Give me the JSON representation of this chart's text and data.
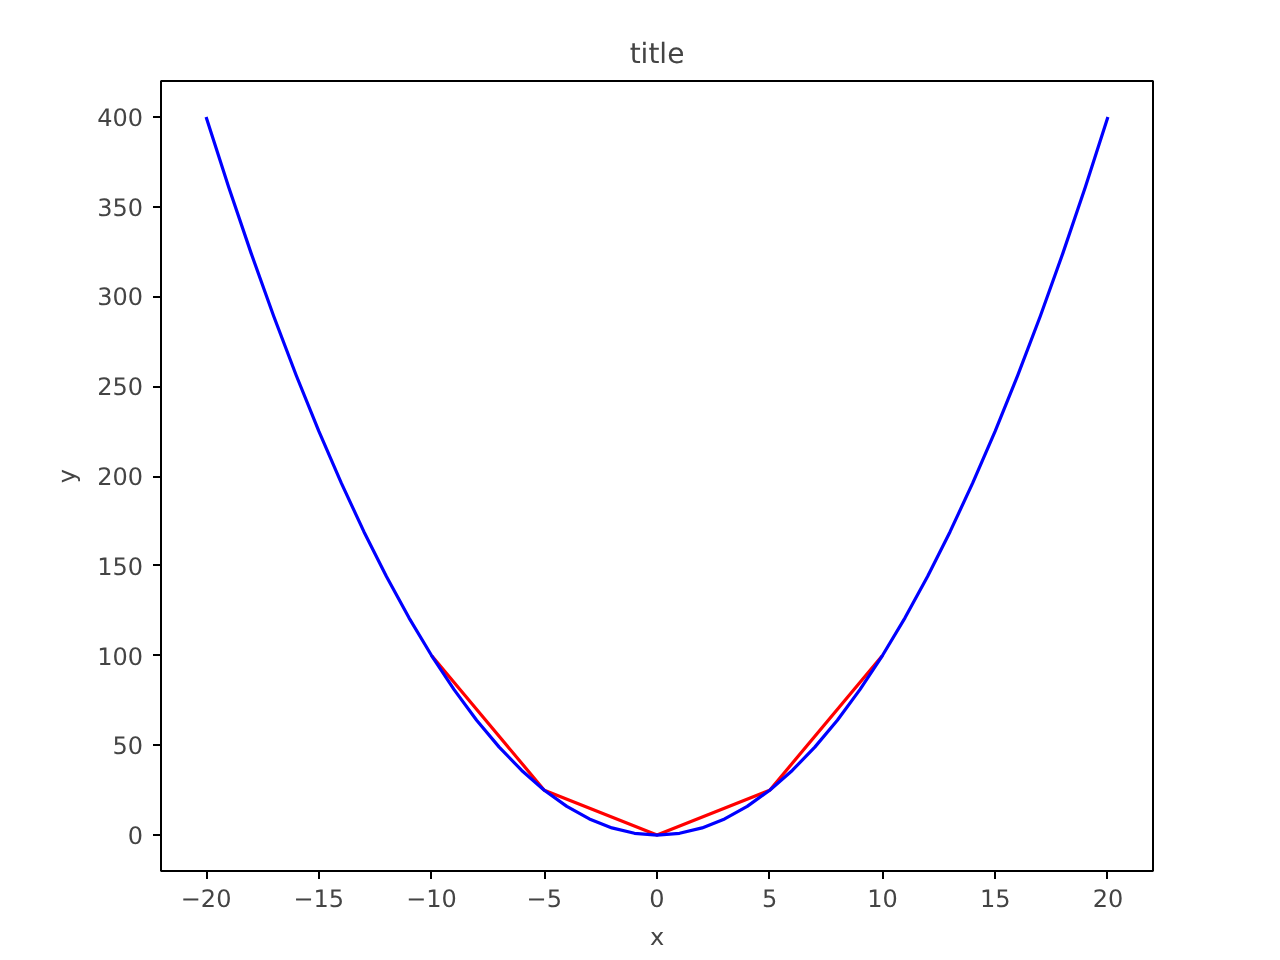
{
  "chart_data": {
    "type": "line",
    "title": "title",
    "xlabel": "x",
    "ylabel": "y",
    "series": [
      {
        "color": "#ff0000",
        "x": [
          -10,
          -5,
          0,
          5,
          10
        ],
        "values": [
          100,
          25,
          0,
          25,
          100
        ]
      },
      {
        "color": "#0000ff",
        "x": [
          -20,
          -19,
          -18,
          -17,
          -16,
          -15,
          -14,
          -13,
          -12,
          -11,
          -10,
          -9,
          -8,
          -7,
          -6,
          -5,
          -4,
          -3,
          -2,
          -1,
          0,
          1,
          2,
          3,
          4,
          5,
          6,
          7,
          8,
          9,
          10,
          11,
          12,
          13,
          14,
          15,
          16,
          17,
          18,
          19,
          20
        ],
        "values": [
          400,
          361,
          324,
          289,
          256,
          225,
          196,
          169,
          144,
          121,
          100,
          81,
          64,
          49,
          36,
          25,
          16,
          9,
          4,
          1,
          0,
          1,
          4,
          9,
          16,
          25,
          36,
          49,
          64,
          81,
          100,
          121,
          144,
          169,
          196,
          225,
          256,
          289,
          324,
          361,
          400
        ]
      }
    ],
    "xlim": [
      -22,
      22
    ],
    "ylim": [
      -20,
      420
    ],
    "xticks": [
      {
        "value": -20,
        "label": "−20"
      },
      {
        "value": -15,
        "label": "−15"
      },
      {
        "value": -10,
        "label": "−10"
      },
      {
        "value": -5,
        "label": "−5"
      },
      0,
      5,
      10,
      15,
      20
    ],
    "yticks": [
      0,
      50,
      100,
      150,
      200,
      250,
      300,
      350,
      400
    ],
    "grid": false,
    "marker": "none",
    "line_style": "solid"
  }
}
